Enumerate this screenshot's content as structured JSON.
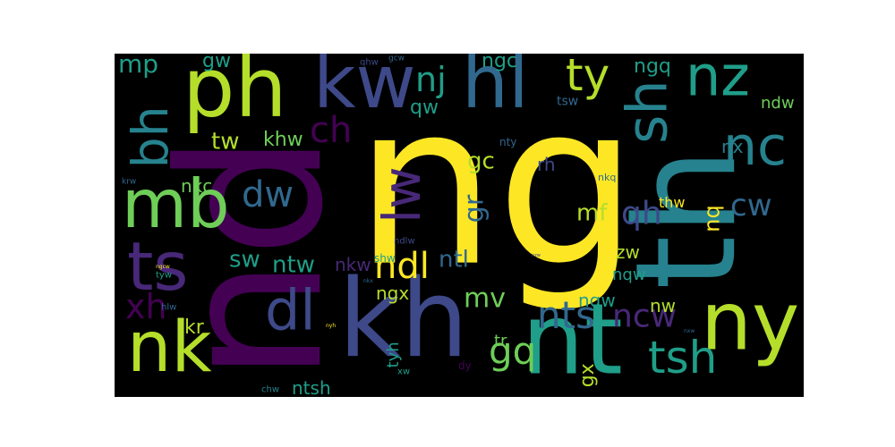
{
  "colors": {
    "background": "#000000",
    "page": "#ffffff",
    "dark_purple": "#440154",
    "purple": "#482878",
    "indigo": "#3e4989",
    "blue": "#31688e",
    "teal_blue": "#26828e",
    "teal": "#1f9e89",
    "green": "#35b779",
    "light_green": "#6ece58",
    "lime": "#b5de2b",
    "yellow": "#fde725"
  },
  "words": [
    {
      "text": "ng",
      "color": "yellow"
    },
    {
      "text": "nd",
      "color": "dark_purple"
    },
    {
      "text": "kh",
      "color": "indigo"
    },
    {
      "text": "th",
      "color": "teal_blue"
    },
    {
      "text": "nt",
      "color": "teal"
    },
    {
      "text": "ph",
      "color": "lime"
    },
    {
      "text": "kw",
      "color": "indigo"
    },
    {
      "text": "hl",
      "color": "blue"
    },
    {
      "text": "nz",
      "color": "teal"
    },
    {
      "text": "ny",
      "color": "lime"
    },
    {
      "text": "nc",
      "color": "teal_blue"
    },
    {
      "text": "sh",
      "color": "teal_blue"
    },
    {
      "text": "mb",
      "color": "light_green"
    },
    {
      "text": "nk",
      "color": "lime"
    },
    {
      "text": "ts",
      "color": "purple"
    },
    {
      "text": "bh",
      "color": "teal_blue"
    },
    {
      "text": "dl",
      "color": "indigo"
    },
    {
      "text": "lw",
      "color": "purple"
    },
    {
      "text": "tsh",
      "color": "teal"
    },
    {
      "text": "ty",
      "color": "lime"
    },
    {
      "text": "nts",
      "color": "blue"
    },
    {
      "text": "ndl",
      "color": "yellow"
    },
    {
      "text": "ch",
      "color": "dark_purple"
    },
    {
      "text": "xh",
      "color": "dark_purple"
    },
    {
      "text": "nj",
      "color": "teal"
    },
    {
      "text": "gq",
      "color": "light_green"
    },
    {
      "text": "dw",
      "color": "blue"
    },
    {
      "text": "ncw",
      "color": "purple"
    },
    {
      "text": "qh",
      "color": "indigo"
    },
    {
      "text": "cw",
      "color": "blue"
    },
    {
      "text": "mp",
      "color": "teal"
    },
    {
      "text": "tw",
      "color": "lime"
    },
    {
      "text": "sw",
      "color": "teal"
    },
    {
      "text": "ntw",
      "color": "teal"
    },
    {
      "text": "mv",
      "color": "light_green"
    },
    {
      "text": "gc",
      "color": "lime"
    },
    {
      "text": "gr",
      "color": "blue"
    },
    {
      "text": "ntl",
      "color": "blue"
    },
    {
      "text": "khw",
      "color": "light_green"
    },
    {
      "text": "mf",
      "color": "lime"
    },
    {
      "text": "nq",
      "color": "yellow"
    },
    {
      "text": "ngc",
      "color": "teal"
    },
    {
      "text": "ngq",
      "color": "teal"
    },
    {
      "text": "qw",
      "color": "teal"
    },
    {
      "text": "gw",
      "color": "teal"
    },
    {
      "text": "nkc",
      "color": "light_green"
    },
    {
      "text": "nkw",
      "color": "purple"
    },
    {
      "text": "ngx",
      "color": "lime"
    },
    {
      "text": "kr",
      "color": "lime"
    },
    {
      "text": "ntsh",
      "color": "teal"
    },
    {
      "text": "ngw",
      "color": "teal"
    },
    {
      "text": "nw",
      "color": "lime"
    },
    {
      "text": "nqw",
      "color": "teal"
    },
    {
      "text": "zw",
      "color": "lime"
    },
    {
      "text": "rh",
      "color": "indigo"
    },
    {
      "text": "nx",
      "color": "teal_blue"
    },
    {
      "text": "ndw",
      "color": "light_green"
    },
    {
      "text": "tr",
      "color": "light_green"
    },
    {
      "text": "gx",
      "color": "lime"
    },
    {
      "text": "tyh",
      "color": "teal"
    },
    {
      "text": "thw",
      "color": "yellow"
    },
    {
      "text": "tsw",
      "color": "blue"
    },
    {
      "text": "nty",
      "color": "blue"
    },
    {
      "text": "nkq",
      "color": "blue"
    },
    {
      "text": "ndlw",
      "color": "indigo"
    },
    {
      "text": "shw",
      "color": "teal"
    },
    {
      "text": "qhw",
      "color": "indigo"
    },
    {
      "text": "gcw",
      "color": "blue"
    },
    {
      "text": "krw",
      "color": "blue"
    },
    {
      "text": "ngcw",
      "color": "yellow"
    },
    {
      "text": "tyw",
      "color": "teal"
    },
    {
      "text": "hlw",
      "color": "blue"
    },
    {
      "text": "chw",
      "color": "teal_blue"
    },
    {
      "text": "xw",
      "color": "teal"
    },
    {
      "text": "dy",
      "color": "dark_purple"
    },
    {
      "text": "nyh",
      "color": "yellow"
    },
    {
      "text": "nkx",
      "color": "blue"
    },
    {
      "text": "nzw",
      "color": "indigo"
    },
    {
      "text": "nxw",
      "color": "blue"
    }
  ]
}
